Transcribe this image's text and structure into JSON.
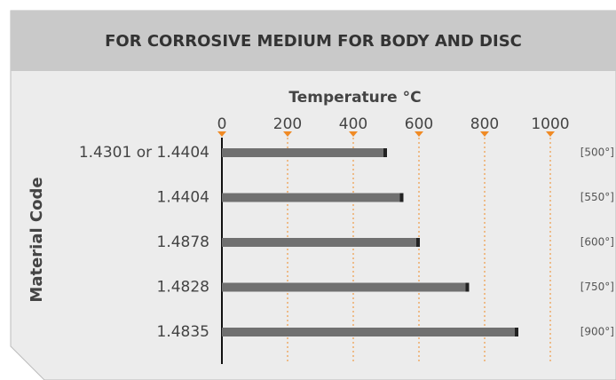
{
  "chart_data": {
    "type": "bar",
    "orientation": "horizontal",
    "title": "FOR CORROSIVE MEDIUM FOR BODY AND DISC",
    "x_label": "Temperature °C",
    "y_label": "Material Code",
    "categories": [
      "1.4301 or 1.4404",
      "1.4404",
      "1.4878",
      "1.4828",
      "1.4835"
    ],
    "values": [
      500,
      550,
      600,
      750,
      900
    ],
    "value_labels": [
      "[500°]",
      "[550°]",
      "[600°]",
      "[750°]",
      "[900°]"
    ],
    "color": "#707070",
    "grid_color": "#f08a24",
    "xlim": [
      0,
      1000
    ],
    "xticks": [
      0,
      200,
      400,
      600,
      800,
      1000
    ],
    "grid": true
  }
}
